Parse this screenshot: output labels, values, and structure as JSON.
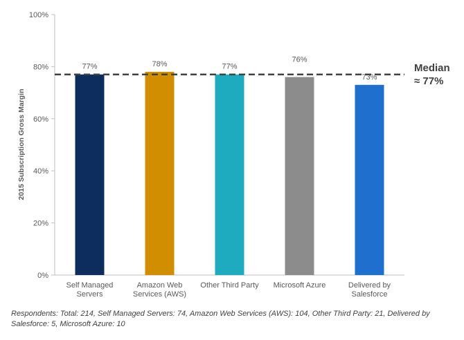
{
  "chart_data": {
    "type": "bar",
    "ylabel": "2015 Subscription Gross Margin",
    "xlabel": "",
    "ylim": [
      0,
      100
    ],
    "yticks": [
      0,
      20,
      40,
      60,
      80,
      100
    ],
    "ytick_labels": [
      "0%",
      "20%",
      "40%",
      "60%",
      "80%",
      "100%"
    ],
    "categories": [
      [
        "Self Managed",
        "Servers"
      ],
      [
        "Amazon Web",
        "Services (AWS)"
      ],
      [
        "Other Third Party"
      ],
      [
        "Microsoft Azure"
      ],
      [
        "Delivered by",
        "Salesforce"
      ]
    ],
    "values": [
      77,
      78,
      77,
      76,
      73
    ],
    "value_labels": [
      "77%",
      "78%",
      "77%",
      "76%",
      "73%"
    ],
    "colors": [
      "#0d2d5e",
      "#d18e00",
      "#1eabbf",
      "#8c8c8c",
      "#1f6fce"
    ],
    "median": {
      "value": 77,
      "label_line1": "Median",
      "label_line2": "≈ 77%",
      "color": "#404040"
    },
    "grid": false
  },
  "footnote": "Respondents: Total: 214, Self Managed Servers: 74, Amazon Web Services (AWS): 104, Other Third Party: 21, Delivered by Salesforce: 5, Microsoft Azure: 10"
}
